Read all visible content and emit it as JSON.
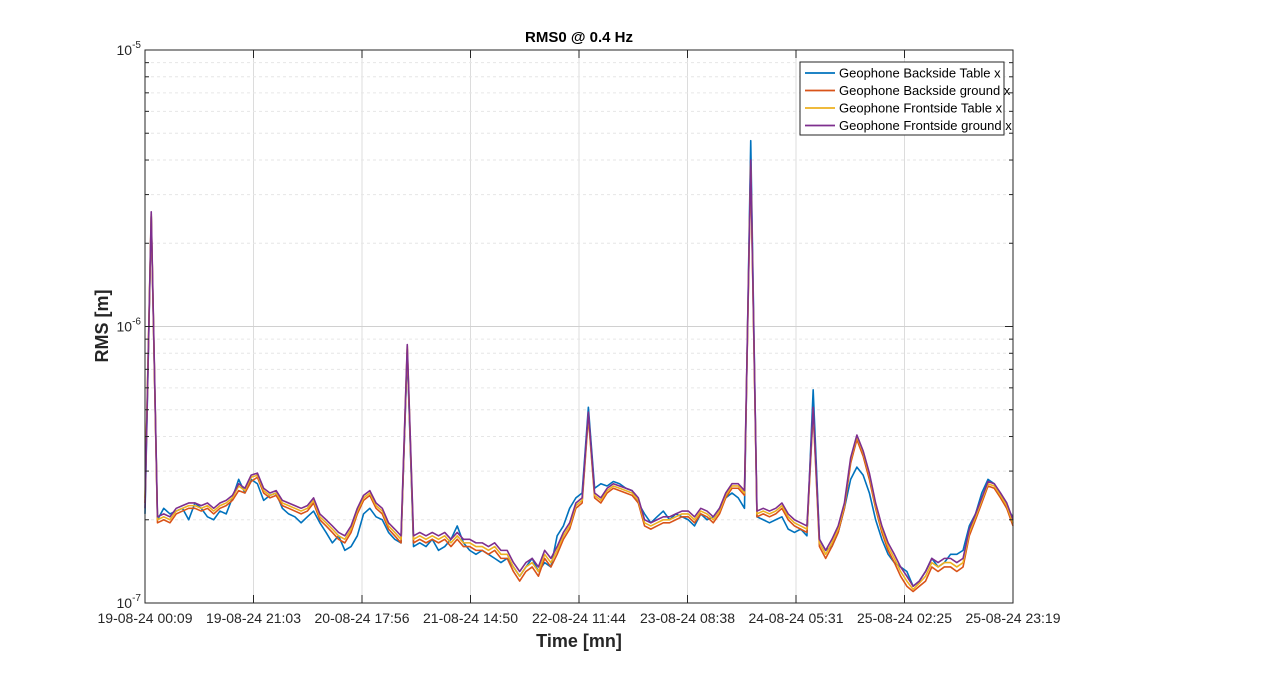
{
  "chart_data": {
    "type": "line",
    "title": "RMS0 @ 0.4 Hz",
    "xlabel": "Time [mn]",
    "ylabel": "RMS [m]",
    "yscale": "log",
    "ylim": [
      1e-07,
      1e-05
    ],
    "xlim": [
      "19-08-24 00:09",
      "25-08-24 23:19"
    ],
    "grid": true,
    "legend_position": "top-right",
    "x_tick_labels": [
      "19-08-24 00:09",
      "19-08-24 21:03",
      "20-08-24 17:56",
      "21-08-24 14:50",
      "22-08-24 11:44",
      "23-08-24 08:38",
      "24-08-24 05:31",
      "25-08-24 02:25",
      "25-08-24 23:19"
    ],
    "y_tick_labels": [
      {
        "base": "10",
        "exp": "-5"
      },
      {
        "base": "10",
        "exp": "-6"
      },
      {
        "base": "10",
        "exp": "-7"
      }
    ],
    "series": [
      {
        "name": "Geophone Backside Table x",
        "color": "#0072BD",
        "values": [
          2.1e-07,
          2.5e-06,
          2e-07,
          2.2e-07,
          2.1e-07,
          2.15e-07,
          2.2e-07,
          2e-07,
          2.3e-07,
          2.2e-07,
          2.05e-07,
          2e-07,
          2.15e-07,
          2.1e-07,
          2.4e-07,
          2.8e-07,
          2.5e-07,
          2.8e-07,
          2.7e-07,
          2.35e-07,
          2.45e-07,
          2.5e-07,
          2.2e-07,
          2.1e-07,
          2.05e-07,
          1.95e-07,
          2.05e-07,
          2.15e-07,
          1.95e-07,
          1.8e-07,
          1.65e-07,
          1.75e-07,
          1.55e-07,
          1.6e-07,
          1.75e-07,
          2.1e-07,
          2.2e-07,
          2.05e-07,
          2e-07,
          1.8e-07,
          1.7e-07,
          1.65e-07,
          8e-07,
          1.6e-07,
          1.65e-07,
          1.6e-07,
          1.7e-07,
          1.55e-07,
          1.6e-07,
          1.7e-07,
          1.9e-07,
          1.65e-07,
          1.55e-07,
          1.5e-07,
          1.55e-07,
          1.5e-07,
          1.45e-07,
          1.4e-07,
          1.45e-07,
          1.35e-07,
          1.25e-07,
          1.35e-07,
          1.45e-07,
          1.3e-07,
          1.4e-07,
          1.35e-07,
          1.75e-07,
          1.9e-07,
          2.2e-07,
          2.4e-07,
          2.5e-07,
          5.1e-07,
          2.6e-07,
          2.7e-07,
          2.65e-07,
          2.75e-07,
          2.7e-07,
          2.6e-07,
          2.55e-07,
          2.3e-07,
          2.1e-07,
          1.95e-07,
          2.05e-07,
          2.15e-07,
          2e-07,
          2.1e-07,
          2.05e-07,
          2e-07,
          1.9e-07,
          2.1e-07,
          2e-07,
          2.05e-07,
          2.2e-07,
          2.4e-07,
          2.5e-07,
          2.4e-07,
          2.2e-07,
          4.7e-06,
          2.05e-07,
          2e-07,
          1.95e-07,
          2e-07,
          2.05e-07,
          1.85e-07,
          1.8e-07,
          1.85e-07,
          1.75e-07,
          5.9e-07,
          1.7e-07,
          1.55e-07,
          1.6e-07,
          1.8e-07,
          2.2e-07,
          2.8e-07,
          3.1e-07,
          2.9e-07,
          2.5e-07,
          2e-07,
          1.7e-07,
          1.5e-07,
          1.4e-07,
          1.35e-07,
          1.3e-07,
          1.15e-07,
          1.2e-07,
          1.3e-07,
          1.45e-07,
          1.35e-07,
          1.4e-07,
          1.5e-07,
          1.5e-07,
          1.55e-07,
          1.9e-07,
          2.1e-07,
          2.5e-07,
          2.8e-07,
          2.7e-07,
          2.45e-07,
          2.2e-07,
          2.05e-07
        ]
      },
      {
        "name": "Geophone Backside ground x",
        "color": "#D95319",
        "values": [
          2.3e-07,
          2.5e-06,
          1.95e-07,
          2e-07,
          1.95e-07,
          2.1e-07,
          2.15e-07,
          2.2e-07,
          2.2e-07,
          2.15e-07,
          2.2e-07,
          2.1e-07,
          2.2e-07,
          2.25e-07,
          2.35e-07,
          2.55e-07,
          2.5e-07,
          2.75e-07,
          2.85e-07,
          2.5e-07,
          2.4e-07,
          2.45e-07,
          2.25e-07,
          2.2e-07,
          2.15e-07,
          2.1e-07,
          2.15e-07,
          2.3e-07,
          2e-07,
          1.9e-07,
          1.8e-07,
          1.7e-07,
          1.65e-07,
          1.8e-07,
          2.1e-07,
          2.35e-07,
          2.45e-07,
          2.2e-07,
          2.1e-07,
          1.85e-07,
          1.75e-07,
          1.65e-07,
          8.3e-07,
          1.65e-07,
          1.7e-07,
          1.65e-07,
          1.7e-07,
          1.65e-07,
          1.7e-07,
          1.6e-07,
          1.7e-07,
          1.6e-07,
          1.6e-07,
          1.55e-07,
          1.55e-07,
          1.5e-07,
          1.55e-07,
          1.45e-07,
          1.45e-07,
          1.3e-07,
          1.2e-07,
          1.3e-07,
          1.35e-07,
          1.25e-07,
          1.45e-07,
          1.35e-07,
          1.5e-07,
          1.7e-07,
          1.85e-07,
          2.2e-07,
          2.3e-07,
          4.7e-07,
          2.4e-07,
          2.3e-07,
          2.5e-07,
          2.6e-07,
          2.55e-07,
          2.5e-07,
          2.45e-07,
          2.3e-07,
          1.9e-07,
          1.85e-07,
          1.9e-07,
          1.95e-07,
          1.95e-07,
          2e-07,
          2.05e-07,
          2.05e-07,
          1.95e-07,
          2.1e-07,
          2.05e-07,
          1.95e-07,
          2.1e-07,
          2.4e-07,
          2.6e-07,
          2.6e-07,
          2.45e-07,
          3.8e-06,
          2.05e-07,
          2.1e-07,
          2.05e-07,
          2.1e-07,
          2.2e-07,
          2e-07,
          1.9e-07,
          1.85e-07,
          1.8e-07,
          4.9e-07,
          1.6e-07,
          1.45e-07,
          1.6e-07,
          1.8e-07,
          2.2e-07,
          3.2e-07,
          3.9e-07,
          3.4e-07,
          2.8e-07,
          2.2e-07,
          1.8e-07,
          1.55e-07,
          1.4e-07,
          1.25e-07,
          1.15e-07,
          1.1e-07,
          1.15e-07,
          1.2e-07,
          1.35e-07,
          1.3e-07,
          1.35e-07,
          1.35e-07,
          1.3e-07,
          1.35e-07,
          1.75e-07,
          2e-07,
          2.3e-07,
          2.65e-07,
          2.6e-07,
          2.4e-07,
          2.2e-07,
          1.9e-07
        ]
      },
      {
        "name": "Geophone Frontside Table x",
        "color": "#EDB120",
        "values": [
          2.4e-07,
          2.55e-06,
          2e-07,
          2.05e-07,
          2e-07,
          2.15e-07,
          2.2e-07,
          2.25e-07,
          2.25e-07,
          2.2e-07,
          2.25e-07,
          2.15e-07,
          2.25e-07,
          2.3e-07,
          2.4e-07,
          2.65e-07,
          2.55e-07,
          2.85e-07,
          2.9e-07,
          2.55e-07,
          2.45e-07,
          2.5e-07,
          2.3e-07,
          2.25e-07,
          2.2e-07,
          2.15e-07,
          2.2e-07,
          2.35e-07,
          2.05e-07,
          1.95e-07,
          1.85e-07,
          1.75e-07,
          1.7e-07,
          1.85e-07,
          2.15e-07,
          2.4e-07,
          2.5e-07,
          2.25e-07,
          2.15e-07,
          1.9e-07,
          1.8e-07,
          1.7e-07,
          8.5e-07,
          1.7e-07,
          1.75e-07,
          1.7e-07,
          1.75e-07,
          1.7e-07,
          1.75e-07,
          1.65e-07,
          1.75e-07,
          1.65e-07,
          1.65e-07,
          1.6e-07,
          1.6e-07,
          1.55e-07,
          1.6e-07,
          1.5e-07,
          1.5e-07,
          1.35e-07,
          1.25e-07,
          1.35e-07,
          1.4e-07,
          1.3e-07,
          1.5e-07,
          1.4e-07,
          1.55e-07,
          1.75e-07,
          1.9e-07,
          2.25e-07,
          2.35e-07,
          4.8e-07,
          2.45e-07,
          2.35e-07,
          2.55e-07,
          2.65e-07,
          2.6e-07,
          2.55e-07,
          2.5e-07,
          2.35e-07,
          1.95e-07,
          1.9e-07,
          1.95e-07,
          2e-07,
          2e-07,
          2.05e-07,
          2.1e-07,
          2.1e-07,
          2e-07,
          2.15e-07,
          2.1e-07,
          2e-07,
          2.15e-07,
          2.45e-07,
          2.65e-07,
          2.65e-07,
          2.5e-07,
          3.9e-06,
          2.1e-07,
          2.15e-07,
          2.1e-07,
          2.15e-07,
          2.25e-07,
          2.05e-07,
          1.95e-07,
          1.9e-07,
          1.85e-07,
          5e-07,
          1.65e-07,
          1.5e-07,
          1.65e-07,
          1.85e-07,
          2.25e-07,
          3.3e-07,
          4e-07,
          3.5e-07,
          2.9e-07,
          2.25e-07,
          1.85e-07,
          1.6e-07,
          1.45e-07,
          1.3e-07,
          1.2e-07,
          1.12e-07,
          1.18e-07,
          1.25e-07,
          1.4e-07,
          1.35e-07,
          1.4e-07,
          1.4e-07,
          1.35e-07,
          1.4e-07,
          1.8e-07,
          2.05e-07,
          2.35e-07,
          2.7e-07,
          2.65e-07,
          2.45e-07,
          2.25e-07,
          1.95e-07
        ]
      },
      {
        "name": "Geophone Frontside ground x",
        "color": "#7E2F8E",
        "values": [
          2.2e-07,
          2.6e-06,
          2.05e-07,
          2.1e-07,
          2.05e-07,
          2.2e-07,
          2.25e-07,
          2.3e-07,
          2.3e-07,
          2.25e-07,
          2.3e-07,
          2.2e-07,
          2.3e-07,
          2.35e-07,
          2.45e-07,
          2.7e-07,
          2.6e-07,
          2.9e-07,
          2.95e-07,
          2.6e-07,
          2.5e-07,
          2.55e-07,
          2.35e-07,
          2.3e-07,
          2.25e-07,
          2.2e-07,
          2.25e-07,
          2.4e-07,
          2.1e-07,
          2e-07,
          1.9e-07,
          1.8e-07,
          1.75e-07,
          1.9e-07,
          2.2e-07,
          2.45e-07,
          2.55e-07,
          2.3e-07,
          2.2e-07,
          1.95e-07,
          1.85e-07,
          1.75e-07,
          8.6e-07,
          1.75e-07,
          1.8e-07,
          1.75e-07,
          1.8e-07,
          1.75e-07,
          1.8e-07,
          1.7e-07,
          1.8e-07,
          1.7e-07,
          1.7e-07,
          1.65e-07,
          1.65e-07,
          1.6e-07,
          1.65e-07,
          1.55e-07,
          1.55e-07,
          1.4e-07,
          1.3e-07,
          1.4e-07,
          1.45e-07,
          1.35e-07,
          1.55e-07,
          1.45e-07,
          1.6e-07,
          1.8e-07,
          1.95e-07,
          2.3e-07,
          2.4e-07,
          4.9e-07,
          2.5e-07,
          2.4e-07,
          2.6e-07,
          2.7e-07,
          2.65e-07,
          2.6e-07,
          2.55e-07,
          2.4e-07,
          2e-07,
          1.95e-07,
          2e-07,
          2.05e-07,
          2.05e-07,
          2.1e-07,
          2.15e-07,
          2.15e-07,
          2.05e-07,
          2.2e-07,
          2.15e-07,
          2.05e-07,
          2.2e-07,
          2.5e-07,
          2.7e-07,
          2.7e-07,
          2.55e-07,
          4e-06,
          2.15e-07,
          2.2e-07,
          2.15e-07,
          2.2e-07,
          2.3e-07,
          2.1e-07,
          2e-07,
          1.95e-07,
          1.9e-07,
          5.1e-07,
          1.7e-07,
          1.55e-07,
          1.7e-07,
          1.9e-07,
          2.3e-07,
          3.35e-07,
          4.05e-07,
          3.55e-07,
          2.95e-07,
          2.3e-07,
          1.9e-07,
          1.65e-07,
          1.5e-07,
          1.35e-07,
          1.25e-07,
          1.15e-07,
          1.2e-07,
          1.3e-07,
          1.45e-07,
          1.4e-07,
          1.45e-07,
          1.45e-07,
          1.4e-07,
          1.45e-07,
          1.85e-07,
          2.1e-07,
          2.4e-07,
          2.75e-07,
          2.7e-07,
          2.5e-07,
          2.3e-07,
          2e-07
        ]
      }
    ]
  }
}
